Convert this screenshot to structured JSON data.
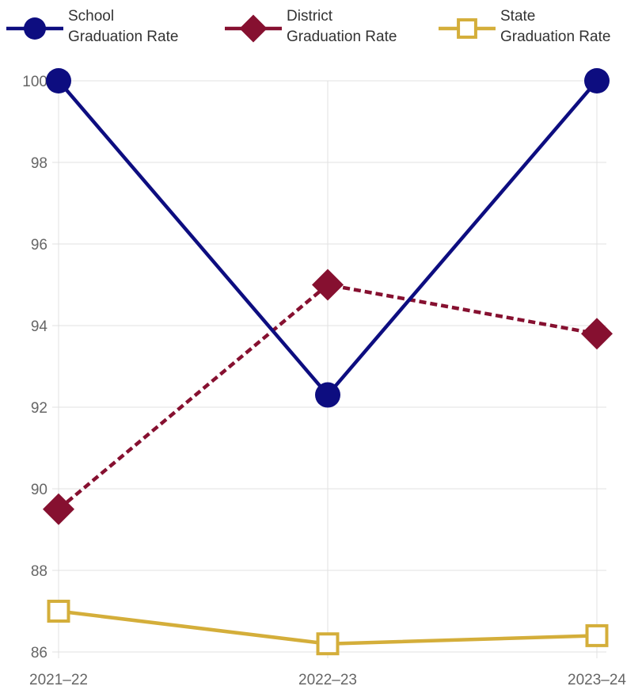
{
  "chart_data": {
    "type": "line",
    "categories": [
      "2021–22",
      "2022–23",
      "2023–24"
    ],
    "series": [
      {
        "name": "School Graduation Rate",
        "name_lines": [
          "School",
          "Graduation Rate"
        ],
        "values": [
          100,
          92.3,
          100
        ],
        "color": "#0d0d80",
        "marker": "circle",
        "line_style": "solid"
      },
      {
        "name": "District Graduation Rate",
        "name_lines": [
          "District",
          "Graduation Rate"
        ],
        "values": [
          89.5,
          95,
          93.8
        ],
        "color": "#861030",
        "marker": "diamond",
        "line_style": "dashed"
      },
      {
        "name": "State Graduation Rate",
        "name_lines": [
          "State",
          "Graduation Rate"
        ],
        "values": [
          87,
          86.2,
          86.4
        ],
        "color": "#d4ae3a",
        "marker": "square-open",
        "line_style": "solid"
      }
    ],
    "y_ticks": [
      "100",
      "98",
      "96",
      "94",
      "92",
      "90",
      "88",
      "86"
    ],
    "ylim": [
      86,
      100
    ],
    "title": "",
    "xlabel": "",
    "ylabel": "",
    "grid": true,
    "legend_position": "top"
  }
}
